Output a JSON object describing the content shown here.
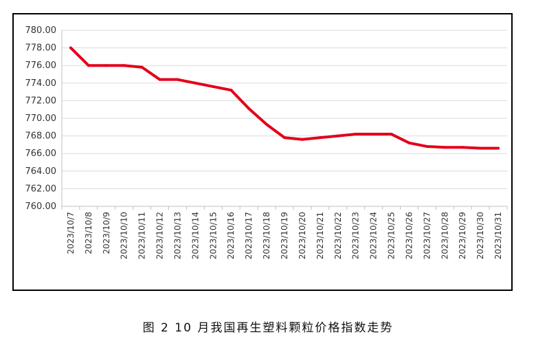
{
  "caption": "图 2  10 月我国再生塑料颗粒价格指数走势",
  "chart_data": {
    "type": "line",
    "title": "",
    "xlabel": "",
    "ylabel": "",
    "ylim": [
      760,
      780
    ],
    "ytick_step": 2,
    "ytick_decimals": 2,
    "grid": true,
    "legend": "none",
    "categories": [
      "2023/10/7",
      "2023/10/8",
      "2023/10/9",
      "2023/10/10",
      "2023/10/11",
      "2023/10/12",
      "2023/10/13",
      "2023/10/14",
      "2023/10/15",
      "2023/10/16",
      "2023/10/17",
      "2023/10/18",
      "2023/10/19",
      "2023/10/20",
      "2023/10/21",
      "2023/10/22",
      "2023/10/23",
      "2023/10/24",
      "2023/10/25",
      "2023/10/26",
      "2023/10/27",
      "2023/10/28",
      "2023/10/29",
      "2023/10/30",
      "2023/10/31"
    ],
    "series": [
      {
        "color": "#e2001a",
        "values": [
          778.0,
          776.0,
          776.0,
          776.0,
          775.8,
          774.4,
          774.4,
          774.0,
          773.6,
          773.2,
          771.1,
          769.3,
          767.8,
          767.6,
          767.8,
          768.0,
          768.2,
          768.2,
          768.2,
          767.2,
          766.8,
          766.7,
          766.7,
          766.6,
          766.6
        ]
      }
    ],
    "colors": {
      "grid": "#d9d9d9",
      "axis": "#bfbfbf"
    }
  }
}
